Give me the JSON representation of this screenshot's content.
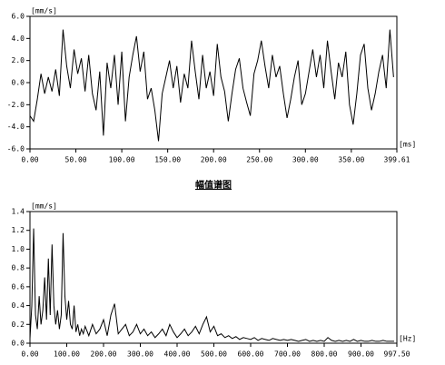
{
  "chart_data": [
    {
      "type": "line",
      "y_unit": "[mm/s]",
      "x_unit": "[ms]",
      "color": "#000000",
      "xlim": [
        0,
        399.61
      ],
      "ylim": [
        -6,
        6
      ],
      "yticks": [
        {
          "value": 6,
          "label": "6.0"
        },
        {
          "value": 4,
          "label": "4.0"
        },
        {
          "value": 2,
          "label": "2.0"
        },
        {
          "value": 0,
          "label": "0.0"
        },
        {
          "value": -2,
          "label": "-2.0"
        },
        {
          "value": -4,
          "label": "-4.0"
        },
        {
          "value": -6,
          "label": "-6.0"
        }
      ],
      "xticks": [
        {
          "value": 0,
          "label": "0.00"
        },
        {
          "value": 50,
          "label": "50.00"
        },
        {
          "value": 100,
          "label": "100.00"
        },
        {
          "value": 150,
          "label": "150.00"
        },
        {
          "value": 200,
          "label": "200.00"
        },
        {
          "value": 250,
          "label": "250.00"
        },
        {
          "value": 300,
          "label": "300.00"
        },
        {
          "value": 350,
          "label": "350.00"
        },
        {
          "value": 399.61,
          "label": "399.61"
        }
      ],
      "x": [
        0,
        4,
        8,
        12,
        16,
        20,
        24,
        28,
        32,
        36,
        40,
        44,
        48,
        52,
        56,
        60,
        64,
        68,
        72,
        76,
        80,
        84,
        88,
        92,
        96,
        100,
        104,
        108,
        112,
        116,
        120,
        124,
        128,
        132,
        136,
        140,
        144,
        148,
        152,
        156,
        160,
        164,
        168,
        172,
        176,
        180,
        184,
        188,
        192,
        196,
        200,
        204,
        208,
        212,
        216,
        220,
        224,
        228,
        232,
        236,
        240,
        244,
        248,
        252,
        256,
        260,
        264,
        268,
        272,
        276,
        280,
        284,
        288,
        292,
        296,
        300,
        304,
        308,
        312,
        316,
        320,
        324,
        328,
        332,
        336,
        340,
        344,
        348,
        352,
        356,
        360,
        364,
        368,
        372,
        376,
        380,
        384,
        388,
        392,
        396
      ],
      "values": [
        -3.0,
        -3.5,
        -1.5,
        0.8,
        -1.0,
        0.5,
        -0.8,
        1.2,
        -1.2,
        4.8,
        1.5,
        -0.5,
        3.0,
        0.8,
        2.2,
        -0.8,
        2.5,
        -1.0,
        -2.5,
        1.0,
        -4.8,
        1.8,
        -0.5,
        2.5,
        -2.0,
        2.8,
        -3.5,
        0.5,
        2.5,
        4.2,
        1.0,
        2.8,
        -1.5,
        -0.5,
        -2.5,
        -5.3,
        -1.0,
        0.5,
        2.0,
        -0.5,
        1.5,
        -1.8,
        0.8,
        -0.5,
        3.8,
        1.0,
        -1.5,
        2.5,
        -0.5,
        1.0,
        -1.2,
        3.5,
        0.5,
        -0.8,
        -3.5,
        -1.0,
        1.2,
        2.2,
        -0.5,
        -1.8,
        -3.0,
        0.8,
        2.0,
        3.8,
        1.5,
        -0.5,
        2.5,
        0.5,
        1.5,
        -1.0,
        -3.2,
        -1.5,
        0.5,
        2.0,
        -2.0,
        -1.0,
        1.0,
        3.0,
        0.5,
        2.5,
        -0.5,
        3.8,
        1.0,
        -1.5,
        1.8,
        0.5,
        2.8,
        -2.0,
        -3.8,
        -1.0,
        2.5,
        3.5,
        -0.5,
        -2.5,
        -1.0,
        1.0,
        2.5,
        -0.5,
        4.8,
        0.5
      ]
    },
    {
      "type": "line",
      "title": "幅值谱图",
      "y_unit": "[mm/s]",
      "x_unit": "[Hz]",
      "color": "#000000",
      "xlim": [
        0,
        997.5
      ],
      "ylim": [
        0,
        1.4
      ],
      "yticks": [
        1.4,
        1.2,
        {
          "value": 1,
          "label": "1.0"
        },
        0.8,
        0.6,
        0.4,
        0.2,
        {
          "value": 0,
          "label": "0.0"
        }
      ],
      "xticks": [
        {
          "value": 0,
          "label": "0.00"
        },
        {
          "value": 100,
          "label": "100.00"
        },
        {
          "value": 200,
          "label": "200.00"
        },
        {
          "value": 300,
          "label": "300.00"
        },
        {
          "value": 400,
          "label": "400.00"
        },
        {
          "value": 500,
          "label": "500.00"
        },
        {
          "value": 600,
          "label": "600.00"
        },
        {
          "value": 700,
          "label": "700.00"
        },
        {
          "value": 800,
          "label": "800.00"
        },
        {
          "value": 900,
          "label": "900.00"
        },
        {
          "value": 997.5,
          "label": "997.50"
        }
      ],
      "x": [
        0,
        5,
        10,
        15,
        20,
        25,
        30,
        35,
        40,
        45,
        50,
        55,
        60,
        65,
        70,
        75,
        80,
        85,
        90,
        95,
        100,
        105,
        110,
        115,
        120,
        125,
        130,
        135,
        140,
        145,
        150,
        160,
        170,
        180,
        190,
        200,
        210,
        220,
        230,
        240,
        250,
        260,
        270,
        280,
        290,
        300,
        310,
        320,
        330,
        340,
        350,
        360,
        370,
        380,
        390,
        400,
        410,
        420,
        430,
        440,
        450,
        460,
        470,
        480,
        490,
        500,
        510,
        520,
        530,
        540,
        550,
        560,
        570,
        580,
        590,
        600,
        610,
        620,
        630,
        640,
        650,
        660,
        670,
        680,
        690,
        700,
        710,
        720,
        730,
        740,
        750,
        760,
        770,
        780,
        790,
        800,
        810,
        820,
        830,
        840,
        850,
        860,
        870,
        880,
        890,
        900,
        910,
        920,
        930,
        940,
        950,
        960,
        970,
        980,
        990
      ],
      "values": [
        0.05,
        0.4,
        1.22,
        0.3,
        0.15,
        0.5,
        0.2,
        0.35,
        0.7,
        0.25,
        0.9,
        0.3,
        1.05,
        0.4,
        0.2,
        0.35,
        0.15,
        0.3,
        1.17,
        0.5,
        0.25,
        0.45,
        0.2,
        0.15,
        0.4,
        0.12,
        0.2,
        0.08,
        0.15,
        0.1,
        0.18,
        0.08,
        0.2,
        0.1,
        0.15,
        0.25,
        0.08,
        0.3,
        0.42,
        0.1,
        0.15,
        0.2,
        0.08,
        0.12,
        0.2,
        0.1,
        0.15,
        0.08,
        0.12,
        0.06,
        0.1,
        0.15,
        0.08,
        0.2,
        0.12,
        0.06,
        0.1,
        0.15,
        0.08,
        0.12,
        0.18,
        0.1,
        0.2,
        0.28,
        0.12,
        0.18,
        0.08,
        0.1,
        0.06,
        0.08,
        0.05,
        0.07,
        0.04,
        0.06,
        0.05,
        0.04,
        0.06,
        0.03,
        0.05,
        0.04,
        0.03,
        0.05,
        0.04,
        0.03,
        0.04,
        0.03,
        0.04,
        0.03,
        0.02,
        0.03,
        0.04,
        0.02,
        0.03,
        0.02,
        0.03,
        0.02,
        0.06,
        0.03,
        0.02,
        0.03,
        0.02,
        0.03,
        0.02,
        0.04,
        0.02,
        0.03,
        0.02,
        0.02,
        0.03,
        0.02,
        0.02,
        0.03,
        0.02,
        0.02,
        0.02
      ]
    }
  ]
}
